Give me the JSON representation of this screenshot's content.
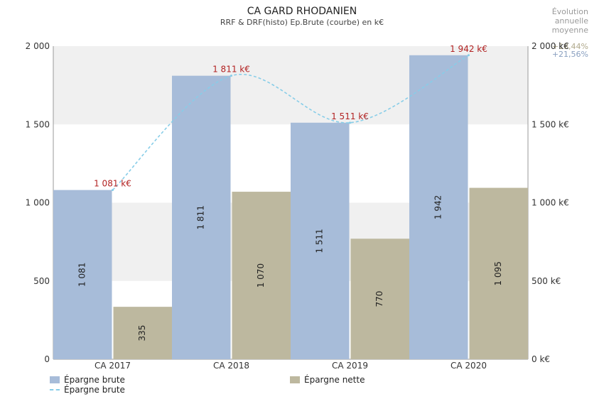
{
  "chart_data": {
    "type": "bar",
    "title": "CA GARD RHODANIEN",
    "subtitle": "RRF & DRF(histo) Ep.Brute (courbe) en k€",
    "categories": [
      "CA 2017",
      "CA 2018",
      "CA 2019",
      "CA 2020"
    ],
    "series": [
      {
        "name": "Épargne brute",
        "type": "bar",
        "color": "#a7bcd9",
        "values": [
          1081,
          1811,
          1511,
          1942
        ],
        "labels": [
          "1 081",
          "1 811",
          "1 511",
          "1 942"
        ]
      },
      {
        "name": "Épargne nette",
        "type": "bar",
        "color": "#bdb89f",
        "values": [
          335,
          1070,
          770,
          1095
        ],
        "labels": [
          "335",
          "1 070",
          "770",
          "1 095"
        ]
      },
      {
        "name": "Épargne brute",
        "type": "line",
        "style": "dashed",
        "color": "#87cde8",
        "values": [
          1081,
          1811,
          1511,
          1942
        ],
        "labels": [
          "1 081 k€",
          "1 811 k€",
          "1 511 k€",
          "1 942 k€"
        ],
        "label_color": "#b22222"
      }
    ],
    "ylim": [
      0,
      2000
    ],
    "y_ticks": [
      0,
      500,
      1000,
      1500,
      2000
    ],
    "y_tick_labels_left": [
      "0",
      "500",
      "1 000",
      "1 500",
      "2 000"
    ],
    "y_tick_labels_right": [
      "0 k€",
      "500 k€",
      "1 000 k€",
      "1 500 k€",
      "2 000 k€"
    ],
    "grid": "alternating horizontal bands",
    "band_color": "#f0f0f0",
    "legend_position": "bottom-left",
    "annotation": {
      "heading": [
        "Évolution",
        "annuelle",
        "moyenne"
      ],
      "values": [
        "+18,44%",
        "+21,56%"
      ]
    }
  }
}
